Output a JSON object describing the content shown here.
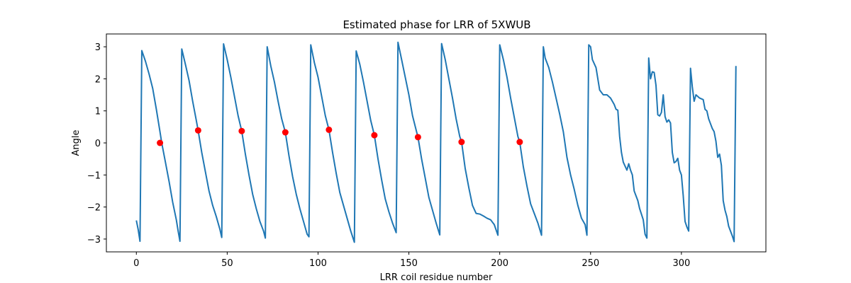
{
  "chart_data": {
    "type": "line",
    "title": "Estimated phase for LRR of 5XWUB",
    "xlabel": "LRR coil residue number",
    "ylabel": "Angle",
    "xlim": [
      -16.5,
      346.5
    ],
    "ylim": [
      -3.4,
      3.4
    ],
    "xticks": [
      0,
      50,
      100,
      150,
      200,
      250,
      300
    ],
    "yticks": [
      -3,
      -2,
      -1,
      0,
      1,
      2,
      3
    ],
    "grid": false,
    "colors": {
      "line": "#1f77b4",
      "markers": "#ff0000"
    },
    "series": [
      {
        "kind": "line",
        "points": [
          [
            0,
            -2.42
          ],
          [
            1,
            -2.7
          ],
          [
            2,
            -3.07
          ],
          [
            3,
            2.88
          ],
          [
            5,
            2.55
          ],
          [
            7,
            2.15
          ],
          [
            9,
            1.7
          ],
          [
            11,
            1.05
          ],
          [
            13,
            0.35
          ],
          [
            14,
            -0.01
          ],
          [
            16,
            -0.6
          ],
          [
            18,
            -1.2
          ],
          [
            20,
            -1.85
          ],
          [
            22,
            -2.4
          ],
          [
            23,
            -2.75
          ],
          [
            24,
            -3.07
          ],
          [
            25,
            2.93
          ],
          [
            27,
            2.45
          ],
          [
            29,
            1.95
          ],
          [
            31,
            1.3
          ],
          [
            33,
            0.7
          ],
          [
            34,
            0.39
          ],
          [
            36,
            -0.3
          ],
          [
            38,
            -0.9
          ],
          [
            40,
            -1.5
          ],
          [
            42,
            -1.95
          ],
          [
            44,
            -2.3
          ],
          [
            46,
            -2.7
          ],
          [
            47,
            -2.95
          ],
          [
            48,
            3.09
          ],
          [
            50,
            2.6
          ],
          [
            52,
            2.05
          ],
          [
            54,
            1.45
          ],
          [
            56,
            0.85
          ],
          [
            58,
            0.37
          ],
          [
            60,
            -0.35
          ],
          [
            62,
            -1.0
          ],
          [
            64,
            -1.6
          ],
          [
            66,
            -2.05
          ],
          [
            68,
            -2.45
          ],
          [
            70,
            -2.75
          ],
          [
            71,
            -2.97
          ],
          [
            72,
            3.0
          ],
          [
            74,
            2.4
          ],
          [
            76,
            1.9
          ],
          [
            78,
            1.3
          ],
          [
            80,
            0.75
          ],
          [
            82,
            0.33
          ],
          [
            84,
            -0.4
          ],
          [
            86,
            -1.05
          ],
          [
            88,
            -1.6
          ],
          [
            90,
            -2.05
          ],
          [
            92,
            -2.45
          ],
          [
            94,
            -2.85
          ],
          [
            95,
            -2.93
          ],
          [
            96,
            3.06
          ],
          [
            98,
            2.5
          ],
          [
            100,
            2.05
          ],
          [
            102,
            1.45
          ],
          [
            104,
            0.85
          ],
          [
            106,
            0.41
          ],
          [
            108,
            -0.3
          ],
          [
            110,
            -0.95
          ],
          [
            112,
            -1.55
          ],
          [
            114,
            -1.95
          ],
          [
            116,
            -2.35
          ],
          [
            118,
            -2.75
          ],
          [
            120,
            -3.1
          ],
          [
            121,
            2.87
          ],
          [
            123,
            2.45
          ],
          [
            125,
            1.9
          ],
          [
            127,
            1.3
          ],
          [
            129,
            0.7
          ],
          [
            131,
            0.24
          ],
          [
            133,
            -0.5
          ],
          [
            135,
            -1.15
          ],
          [
            137,
            -1.75
          ],
          [
            139,
            -2.15
          ],
          [
            141,
            -2.5
          ],
          [
            143,
            -2.8
          ],
          [
            144,
            3.14
          ],
          [
            146,
            2.6
          ],
          [
            148,
            2.05
          ],
          [
            150,
            1.5
          ],
          [
            152,
            0.85
          ],
          [
            154,
            0.4
          ],
          [
            155,
            0.18
          ],
          [
            157,
            -0.5
          ],
          [
            159,
            -1.1
          ],
          [
            161,
            -1.7
          ],
          [
            163,
            -2.1
          ],
          [
            165,
            -2.5
          ],
          [
            167,
            -2.87
          ],
          [
            168,
            3.1
          ],
          [
            170,
            2.6
          ],
          [
            172,
            2.0
          ],
          [
            174,
            1.4
          ],
          [
            176,
            0.75
          ],
          [
            178,
            0.2
          ],
          [
            179,
            0.03
          ],
          [
            181,
            -0.8
          ],
          [
            183,
            -1.4
          ],
          [
            185,
            -1.95
          ],
          [
            187,
            -2.2
          ],
          [
            189,
            -2.22
          ],
          [
            191,
            -2.28
          ],
          [
            193,
            -2.35
          ],
          [
            195,
            -2.4
          ],
          [
            197,
            -2.55
          ],
          [
            199,
            -2.88
          ],
          [
            200,
            3.06
          ],
          [
            202,
            2.6
          ],
          [
            204,
            2.05
          ],
          [
            206,
            1.4
          ],
          [
            208,
            0.8
          ],
          [
            210,
            0.2
          ],
          [
            211,
            0.03
          ],
          [
            213,
            -0.75
          ],
          [
            215,
            -1.35
          ],
          [
            217,
            -1.9
          ],
          [
            219,
            -2.2
          ],
          [
            221,
            -2.5
          ],
          [
            223,
            -2.88
          ],
          [
            224,
            3.0
          ],
          [
            225,
            2.65
          ],
          [
            227,
            2.35
          ],
          [
            229,
            1.9
          ],
          [
            231,
            1.4
          ],
          [
            233,
            0.9
          ],
          [
            235,
            0.35
          ],
          [
            237,
            -0.45
          ],
          [
            239,
            -1.0
          ],
          [
            241,
            -1.45
          ],
          [
            243,
            -1.95
          ],
          [
            245,
            -2.35
          ],
          [
            247,
            -2.55
          ],
          [
            248,
            -2.88
          ],
          [
            249,
            3.06
          ],
          [
            250,
            3.0
          ],
          [
            251,
            2.6
          ],
          [
            253,
            2.35
          ],
          [
            255,
            1.65
          ],
          [
            257,
            1.5
          ],
          [
            259,
            1.5
          ],
          [
            261,
            1.4
          ],
          [
            263,
            1.2
          ],
          [
            264,
            1.05
          ],
          [
            265,
            1.02
          ],
          [
            266,
            0.2
          ],
          [
            267,
            -0.3
          ],
          [
            268,
            -0.6
          ],
          [
            270,
            -0.85
          ],
          [
            271,
            -0.65
          ],
          [
            272,
            -0.85
          ],
          [
            273,
            -1.0
          ],
          [
            274,
            -1.5
          ],
          [
            275,
            -1.65
          ],
          [
            276,
            -1.8
          ],
          [
            277,
            -2.05
          ],
          [
            279,
            -2.4
          ],
          [
            280,
            -2.85
          ],
          [
            281,
            -2.97
          ],
          [
            282,
            2.65
          ],
          [
            283,
            2.0
          ],
          [
            284,
            2.22
          ],
          [
            285,
            2.2
          ],
          [
            286,
            1.8
          ],
          [
            287,
            0.88
          ],
          [
            288,
            0.84
          ],
          [
            289,
            0.95
          ],
          [
            290,
            1.5
          ],
          [
            291,
            0.82
          ],
          [
            292,
            0.65
          ],
          [
            293,
            0.72
          ],
          [
            294,
            0.62
          ],
          [
            295,
            -0.3
          ],
          [
            296,
            -0.62
          ],
          [
            297,
            -0.58
          ],
          [
            298,
            -0.48
          ],
          [
            299,
            -0.85
          ],
          [
            300,
            -1.0
          ],
          [
            301,
            -1.65
          ],
          [
            302,
            -2.45
          ],
          [
            303,
            -2.62
          ],
          [
            304,
            -2.75
          ],
          [
            305,
            2.33
          ],
          [
            306,
            1.75
          ],
          [
            307,
            1.3
          ],
          [
            308,
            1.5
          ],
          [
            310,
            1.4
          ],
          [
            312,
            1.35
          ],
          [
            313,
            1.05
          ],
          [
            314,
            1.0
          ],
          [
            315,
            0.75
          ],
          [
            316,
            0.6
          ],
          [
            317,
            0.45
          ],
          [
            318,
            0.35
          ],
          [
            319,
            0.05
          ],
          [
            320,
            -0.45
          ],
          [
            321,
            -0.35
          ],
          [
            322,
            -0.7
          ],
          [
            323,
            -1.8
          ],
          [
            324,
            -2.1
          ],
          [
            325,
            -2.3
          ],
          [
            326,
            -2.6
          ],
          [
            328,
            -2.9
          ],
          [
            329,
            -3.08
          ],
          [
            330,
            2.4
          ]
        ]
      },
      {
        "kind": "markers",
        "points": [
          [
            13,
            0.0
          ],
          [
            34,
            0.39
          ],
          [
            58,
            0.37
          ],
          [
            82,
            0.33
          ],
          [
            106,
            0.41
          ],
          [
            131,
            0.24
          ],
          [
            155,
            0.18
          ],
          [
            179,
            0.03
          ],
          [
            211,
            0.03
          ]
        ]
      }
    ]
  }
}
